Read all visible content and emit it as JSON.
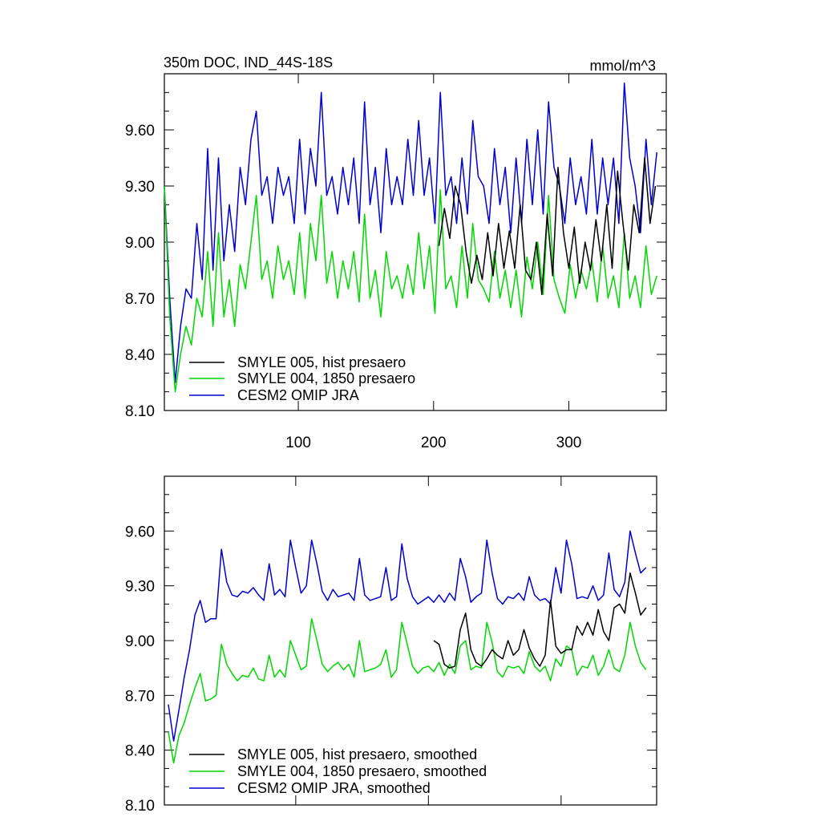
{
  "figure": {
    "title": "350m DOC, IND_44S-18S",
    "units": "mmol/m^3"
  },
  "chart_data": [
    {
      "type": "line",
      "title": "350m DOC, IND_44S-18S",
      "units": "mmol/m^3",
      "xlim": [
        1,
        372
      ],
      "ylim": [
        8.1,
        9.9
      ],
      "x_ticks": [
        100,
        200,
        300
      ],
      "y_ticks": [
        8.1,
        8.4,
        8.7,
        9.0,
        9.3,
        9.6
      ],
      "y_tick_labels": [
        "8.10",
        "8.40",
        "8.70",
        "9.00",
        "9.30",
        "9.60"
      ],
      "series": [
        {
          "name": "SMYLE 005, hist presaero",
          "color": "#000000",
          "x_start": 204,
          "x_end": 364,
          "step": 4,
          "values": [
            8.98,
            9.18,
            9.02,
            9.3,
            9.2,
            8.95,
            8.78,
            8.93,
            8.8,
            9.05,
            8.82,
            9.1,
            8.86,
            9.06,
            8.86,
            9.2,
            8.85,
            8.8,
            9.0,
            8.72,
            9.15,
            8.82,
            9.4,
            9.05,
            8.86,
            9.08,
            8.78,
            9.0,
            8.85,
            9.12,
            8.9,
            9.2,
            8.86,
            9.38,
            9.1,
            8.85,
            9.2,
            9.05,
            9.45,
            9.1,
            9.3
          ]
        },
        {
          "name": "SMYLE 004, 1850 presaero",
          "color": "#00d800",
          "x_start": 1,
          "x_end": 365,
          "step": 4,
          "values": [
            9.3,
            8.6,
            8.2,
            8.4,
            8.55,
            8.45,
            8.7,
            8.6,
            8.95,
            8.55,
            9.05,
            8.6,
            8.8,
            8.55,
            8.88,
            8.75,
            9.0,
            9.25,
            8.8,
            8.9,
            8.7,
            8.98,
            8.8,
            8.9,
            8.72,
            9.05,
            8.7,
            9.1,
            8.9,
            9.25,
            8.78,
            8.95,
            8.7,
            8.9,
            8.75,
            8.95,
            8.68,
            9.15,
            8.7,
            8.85,
            8.6,
            8.95,
            8.75,
            8.82,
            8.7,
            8.88,
            8.72,
            9.05,
            8.75,
            8.98,
            8.62,
            9.28,
            8.75,
            8.82,
            8.65,
            8.98,
            8.7,
            9.1,
            8.8,
            8.75,
            8.68,
            8.95,
            8.7,
            8.85,
            8.65,
            8.85,
            8.6,
            8.92,
            8.75,
            9.0,
            8.72,
            9.25,
            8.8,
            8.7,
            8.62,
            8.88,
            8.7,
            8.85,
            8.75,
            8.9,
            8.68,
            8.98,
            8.7,
            8.82,
            8.65,
            9.05,
            8.7,
            8.82,
            8.65,
            8.98,
            8.72,
            8.82
          ]
        },
        {
          "name": "CESM2 OMIP JRA",
          "color": "#0000d0",
          "x_start": 1,
          "x_end": 365,
          "step": 4,
          "values": [
            9.3,
            8.7,
            8.25,
            8.55,
            8.75,
            8.7,
            9.1,
            8.8,
            9.5,
            8.85,
            9.45,
            8.9,
            9.2,
            8.95,
            9.4,
            9.2,
            9.55,
            9.7,
            9.25,
            9.35,
            9.1,
            9.4,
            9.25,
            9.35,
            9.1,
            9.55,
            9.15,
            9.5,
            9.3,
            9.8,
            9.25,
            9.35,
            9.15,
            9.4,
            9.2,
            9.45,
            9.1,
            9.75,
            9.2,
            9.4,
            9.05,
            9.5,
            9.2,
            9.35,
            9.2,
            9.55,
            9.25,
            9.65,
            9.25,
            9.45,
            9.1,
            9.8,
            9.25,
            9.35,
            9.1,
            9.45,
            9.15,
            9.65,
            9.35,
            9.3,
            9.1,
            9.5,
            9.2,
            9.4,
            9.05,
            9.45,
            9.1,
            9.55,
            9.2,
            9.6,
            9.15,
            9.75,
            9.4,
            9.3,
            9.1,
            9.45,
            9.2,
            9.35,
            9.15,
            9.55,
            9.15,
            9.45,
            9.2,
            9.45,
            9.1,
            9.85,
            9.45,
            9.3,
            9.05,
            9.55,
            9.2,
            9.48
          ]
        }
      ]
    },
    {
      "type": "line",
      "title": "",
      "xlim": [
        1,
        372
      ],
      "ylim": [
        8.1,
        9.9
      ],
      "x_ticks": [
        100,
        200,
        300
      ],
      "y_ticks": [
        8.1,
        8.4,
        8.7,
        9.0,
        9.3,
        9.6
      ],
      "y_tick_labels": [
        "8.10",
        "8.40",
        "8.70",
        "9.00",
        "9.30",
        "9.60"
      ],
      "series": [
        {
          "name": "SMYLE 005, hist presaero, smoothed",
          "color": "#000000",
          "x_start": 204,
          "x_end": 364,
          "step": 4,
          "values": [
            9.0,
            8.98,
            8.87,
            8.85,
            8.86,
            9.06,
            9.15,
            8.95,
            8.88,
            8.86,
            8.9,
            8.95,
            8.92,
            8.9,
            9.0,
            8.92,
            8.95,
            9.06,
            8.96,
            8.9,
            8.86,
            8.92,
            9.22,
            8.97,
            8.93,
            8.95,
            8.95,
            9.08,
            9.03,
            9.1,
            9.03,
            9.17,
            9.05,
            9.0,
            9.18,
            9.2,
            9.15,
            9.37,
            9.26,
            9.14,
            9.18
          ]
        },
        {
          "name": "SMYLE 004, 1850 presaero, smoothed",
          "color": "#00d800",
          "x_start": 4,
          "x_end": 364,
          "step": 4,
          "values": [
            8.5,
            8.33,
            8.48,
            8.55,
            8.65,
            8.74,
            8.82,
            8.67,
            8.68,
            8.7,
            8.98,
            8.87,
            8.82,
            8.78,
            8.81,
            8.8,
            8.85,
            8.79,
            8.78,
            8.92,
            8.8,
            8.84,
            8.8,
            9.0,
            8.92,
            8.84,
            8.86,
            9.12,
            9.0,
            8.87,
            8.83,
            8.86,
            8.88,
            8.84,
            8.87,
            8.8,
            9.0,
            8.83,
            8.84,
            8.85,
            8.87,
            8.95,
            8.8,
            8.84,
            9.1,
            8.98,
            8.86,
            8.82,
            8.85,
            8.86,
            8.83,
            8.88,
            8.81,
            8.87,
            8.82,
            8.97,
            9.0,
            8.84,
            8.86,
            8.85,
            9.1,
            8.99,
            8.83,
            8.8,
            8.86,
            8.85,
            8.86,
            8.82,
            8.94,
            8.86,
            8.83,
            8.86,
            8.78,
            8.9,
            8.86,
            8.97,
            8.95,
            8.81,
            8.86,
            8.85,
            8.92,
            8.81,
            8.86,
            8.95,
            8.85,
            8.83,
            8.92,
            9.1,
            8.97,
            8.88,
            8.84
          ]
        },
        {
          "name": "CESM2 OMIP JRA, smoothed",
          "color": "#0000d0",
          "x_start": 4,
          "x_end": 364,
          "step": 4,
          "values": [
            8.65,
            8.45,
            8.62,
            8.8,
            8.95,
            9.14,
            9.22,
            9.1,
            9.12,
            9.12,
            9.5,
            9.32,
            9.25,
            9.24,
            9.27,
            9.26,
            9.29,
            9.25,
            9.22,
            9.42,
            9.25,
            9.28,
            9.24,
            9.55,
            9.4,
            9.26,
            9.3,
            9.55,
            9.42,
            9.27,
            9.22,
            9.28,
            9.24,
            9.25,
            9.26,
            9.22,
            9.45,
            9.25,
            9.22,
            9.23,
            9.24,
            9.4,
            9.22,
            9.24,
            9.53,
            9.34,
            9.24,
            9.2,
            9.22,
            9.24,
            9.21,
            9.25,
            9.21,
            9.26,
            9.22,
            9.45,
            9.35,
            9.21,
            9.24,
            9.26,
            9.55,
            9.37,
            9.23,
            9.2,
            9.24,
            9.23,
            9.26,
            9.22,
            9.35,
            9.25,
            9.22,
            9.23,
            9.2,
            9.4,
            9.26,
            9.55,
            9.42,
            9.23,
            9.24,
            9.23,
            9.3,
            9.22,
            9.25,
            9.48,
            9.28,
            9.24,
            9.32,
            9.6,
            9.48,
            9.37,
            9.4
          ]
        }
      ]
    }
  ]
}
